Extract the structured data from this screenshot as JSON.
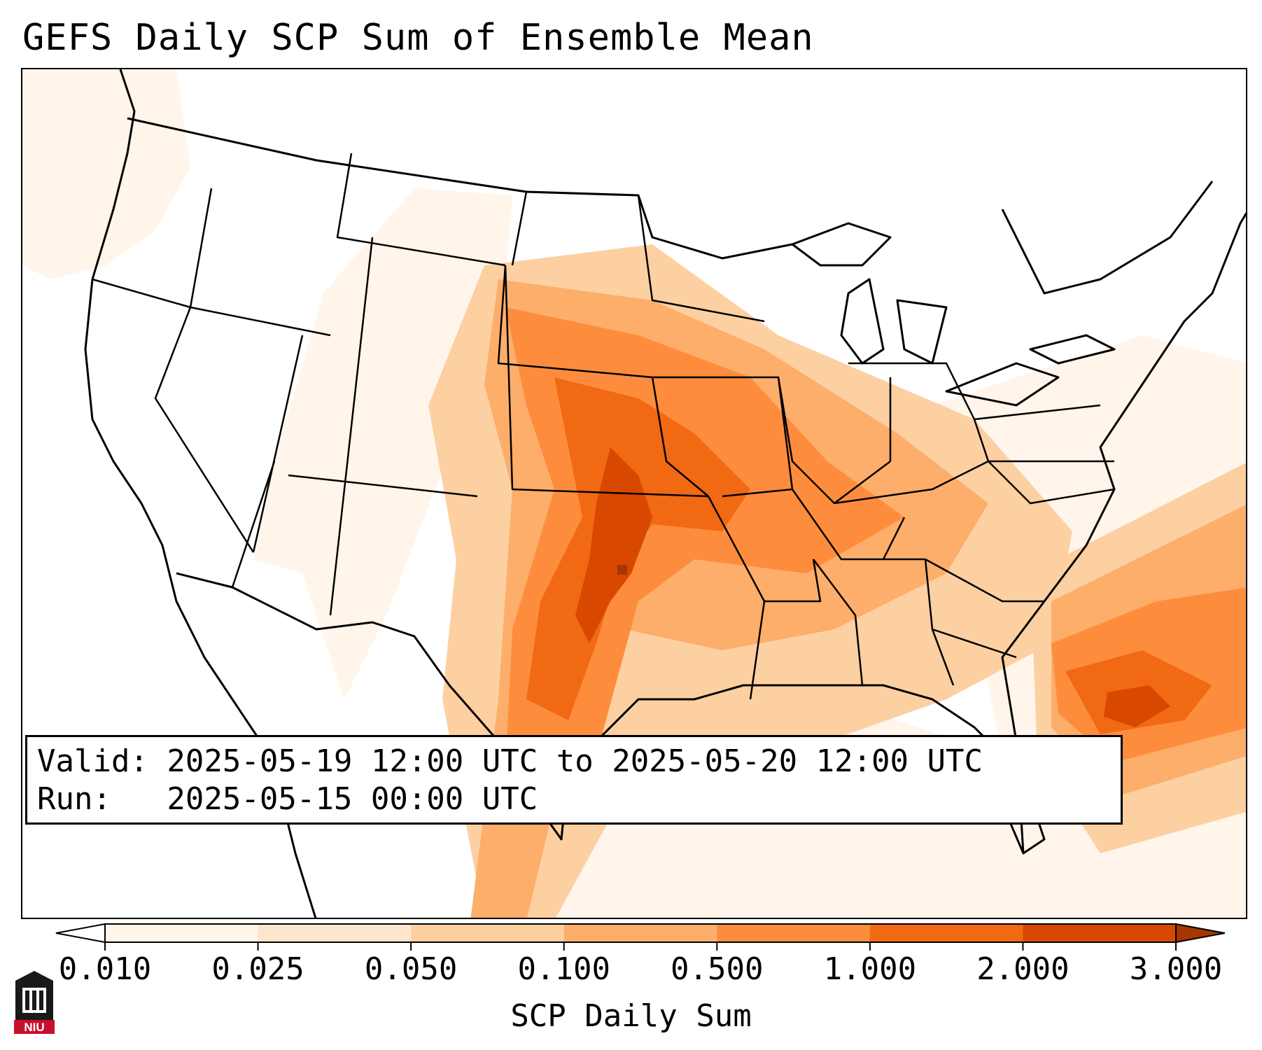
{
  "title": "GEFS Daily SCP Sum of Ensemble Mean",
  "info": {
    "valid": "Valid: 2025-05-19 12:00 UTC to 2025-05-20 12:00 UTC",
    "run": "Run:   2025-05-15 00:00 UTC"
  },
  "colorbar": {
    "label": "SCP Daily Sum",
    "ticks": [
      "0.010",
      "0.025",
      "0.050",
      "0.100",
      "0.500",
      "1.000",
      "2.000",
      "3.000"
    ],
    "colors": [
      "#fff5eb",
      "#fee6ce",
      "#fdd0a2",
      "#fdae6b",
      "#fd8d3c",
      "#f16913",
      "#d94801",
      "#a63603"
    ],
    "extend": "both"
  },
  "logo": {
    "text": "NIU",
    "color": "#c8102e"
  },
  "chart_data": {
    "type": "heatmap",
    "title": "GEFS Daily SCP Sum of Ensemble Mean",
    "colorbar_label": "SCP Daily Sum",
    "levels": [
      0.01,
      0.025,
      0.05,
      0.1,
      0.5,
      1.0,
      2.0,
      3.0
    ],
    "regions": [
      {
        "level": 0.01
      },
      {
        "level": 0.05
      },
      {
        "level": 0.1
      },
      {
        "level": 0.5
      },
      {
        "level": 1.0
      },
      {
        "level": 2.0
      },
      {
        "level": 3.0
      }
    ]
  }
}
